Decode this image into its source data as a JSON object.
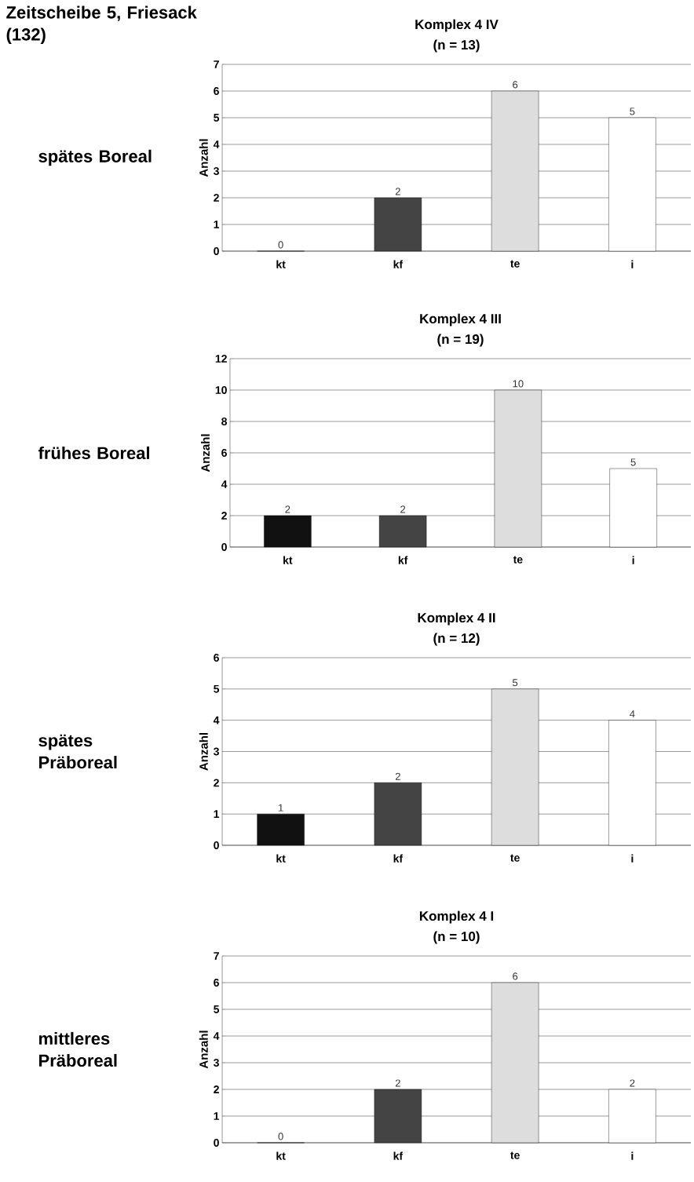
{
  "chart_data": [
    {
      "type": "bar",
      "title": "Komplex 4 IV",
      "subtitle": "(n = 13)",
      "ylabel": "Anzahl",
      "categories": [
        "kt",
        "kf",
        "te",
        "i"
      ],
      "values": [
        0,
        2,
        6,
        5
      ],
      "colors": [
        "#111111",
        "#444444",
        "#dddddd",
        "#ffffff"
      ],
      "ylim": [
        0,
        7
      ],
      "yticks": [
        0,
        1,
        2,
        3,
        4,
        5,
        6,
        7
      ],
      "grid": "y",
      "data_labels": true,
      "annotations": [
        "Zeitscheibe 5, Friesack (132)",
        "spätes Boreal"
      ]
    },
    {
      "type": "bar",
      "title": "Komplex 4 III",
      "subtitle": "(n = 19)",
      "ylabel": "Anzahl",
      "categories": [
        "kt",
        "kf",
        "te",
        "i"
      ],
      "values": [
        2,
        2,
        10,
        5
      ],
      "colors": [
        "#111111",
        "#444444",
        "#dddddd",
        "#ffffff"
      ],
      "ylim": [
        0,
        12
      ],
      "yticks": [
        0,
        2,
        4,
        6,
        8,
        10,
        12
      ],
      "grid": "y",
      "data_labels": true,
      "annotations": [
        "frühes Boreal"
      ]
    },
    {
      "type": "bar",
      "title": "Komplex 4 II",
      "subtitle": "(n = 12)",
      "ylabel": "Anzahl",
      "categories": [
        "kt",
        "kf",
        "te",
        "i"
      ],
      "values": [
        1,
        2,
        5,
        4
      ],
      "colors": [
        "#111111",
        "#444444",
        "#dddddd",
        "#ffffff"
      ],
      "ylim": [
        0,
        6
      ],
      "yticks": [
        0,
        1,
        2,
        3,
        4,
        5,
        6
      ],
      "grid": "y",
      "data_labels": true,
      "annotations": [
        "spätes Präboreal"
      ]
    },
    {
      "type": "bar",
      "title": "Komplex 4 I",
      "subtitle": "(n = 10)",
      "ylabel": "Anzahl",
      "categories": [
        "kt",
        "kf",
        "te",
        "i"
      ],
      "values": [
        0,
        2,
        6,
        2
      ],
      "colors": [
        "#111111",
        "#444444",
        "#dddddd",
        "#ffffff"
      ],
      "ylim": [
        0,
        7
      ],
      "yticks": [
        0,
        1,
        2,
        3,
        4,
        5,
        6,
        7
      ],
      "grid": "y",
      "data_labels": true,
      "annotations": [
        "mittleres Präboreal"
      ]
    }
  ]
}
